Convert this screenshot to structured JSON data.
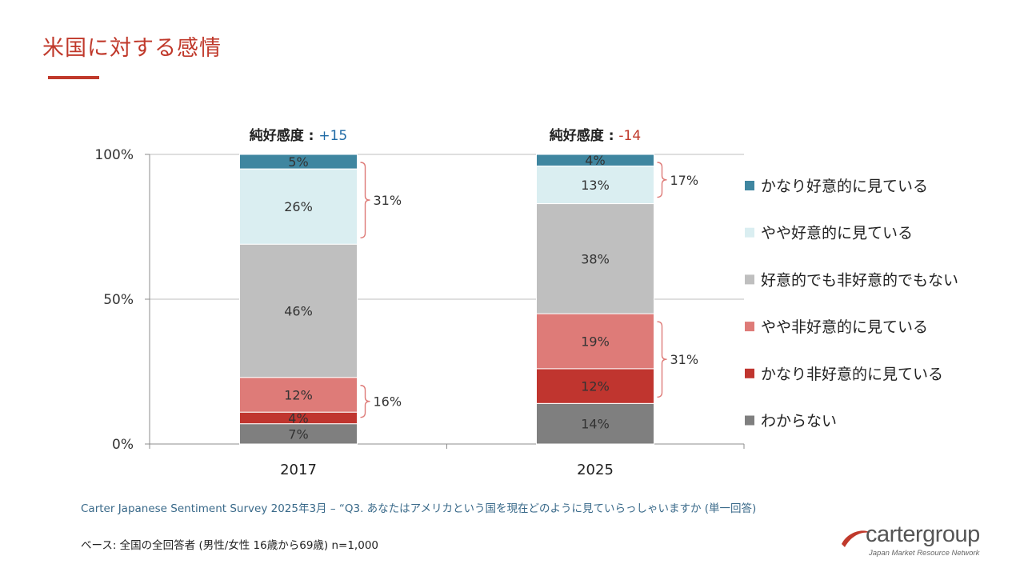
{
  "page_title": "米国に対する感情",
  "chart_data": {
    "type": "bar",
    "stacked": true,
    "categories": [
      "2017",
      "2025"
    ],
    "y_ticks": [
      "0%",
      "50%",
      "100%"
    ],
    "ylim": [
      0,
      100
    ],
    "series": [
      {
        "name": "わからない",
        "values": [
          7,
          14
        ],
        "labels": [
          "7%",
          "14%"
        ],
        "color": "#7f7f7f"
      },
      {
        "name": "かなり非好意的に見ている",
        "values": [
          4,
          12
        ],
        "labels": [
          "4%",
          "12%"
        ],
        "color": "#c0352f"
      },
      {
        "name": "やや非好意的に見ている",
        "values": [
          12,
          19
        ],
        "labels": [
          "12%",
          "19%"
        ],
        "color": "#de7b78"
      },
      {
        "name": "好意的でも非好意的でもない",
        "values": [
          46,
          38
        ],
        "labels": [
          "46%",
          "38%"
        ],
        "color": "#bfbfbf"
      },
      {
        "name": "やや好意的に見ている",
        "values": [
          26,
          13
        ],
        "labels": [
          "26%",
          "13%"
        ],
        "color": "#daeef1"
      },
      {
        "name": "かなり好意的に見ている",
        "values": [
          5,
          4
        ],
        "labels": [
          "5%",
          "4%"
        ],
        "color": "#3f86a0"
      }
    ],
    "net_favorability": [
      {
        "label": "純好感度 : ",
        "value": "+15",
        "color": "#1f6aa5"
      },
      {
        "label": "純好感度 : ",
        "value": "-14",
        "color": "#c0392b"
      }
    ],
    "brackets": [
      {
        "category": "2017",
        "group": "favorable",
        "from": 69,
        "to": 100,
        "label": "31%"
      },
      {
        "category": "2017",
        "group": "unfavorable",
        "from": 7,
        "to": 23,
        "label": "16%"
      },
      {
        "category": "2025",
        "group": "favorable",
        "from": 83,
        "to": 100,
        "label": "17%"
      },
      {
        "category": "2025",
        "group": "unfavorable",
        "from": 14,
        "to": 45,
        "label": "31%"
      }
    ],
    "legend_position": "right"
  },
  "footnote": {
    "source": "Carter Japanese Sentiment Survey 2025年3月 – “Q3. あなたはアメリカという国を現在どのように見ていらっしゃいますか (単一回答)",
    "base": "ベース: 全国の全回答者 (男性/女性 16歳から69歳) n=1,000"
  },
  "logo": {
    "name_part1": "carter",
    "name_part2": "group",
    "tagline": "Japan Market Resource Network",
    "color": "#c0392b"
  }
}
